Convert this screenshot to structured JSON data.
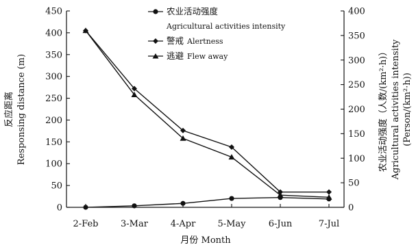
{
  "chart_data": {
    "type": "line",
    "categories": [
      "2-Feb",
      "3-Mar",
      "4-Apr",
      "5-May",
      "6-Jun",
      "7-Jul"
    ],
    "xlabel": "月份 Month",
    "ylabel_left_cn": "反应距离",
    "ylabel_left_en": "Responsing distance (m)",
    "ylabel_right_cn": "农业活动强度（人数/(km²·h)）",
    "ylabel_right_en": "Agricultural activities intensity",
    "ylabel_right_unit": "(Person/(km²·h))",
    "ylim_left": [
      0,
      450
    ],
    "yticks_left": [
      0,
      50,
      100,
      150,
      200,
      250,
      300,
      350,
      400,
      450
    ],
    "ylim_right": [
      0,
      400
    ],
    "yticks_right": [
      0,
      50,
      100,
      150,
      200,
      250,
      300,
      350,
      400
    ],
    "grid": false,
    "legend_position": "top-center",
    "series": [
      {
        "key": "intensity",
        "name_cn": "农业活动强度",
        "name_en": "Agricultural activities intensity",
        "axis": "right",
        "marker": "circle",
        "values": [
          0,
          3,
          8,
          18,
          20,
          17
        ]
      },
      {
        "key": "alertness",
        "name_cn": "警戒",
        "name_en": "Alertness",
        "axis": "left",
        "marker": "diamond",
        "values": [
          405,
          272,
          176,
          138,
          35,
          35
        ]
      },
      {
        "key": "flew_away",
        "name_cn": "逃避",
        "name_en": "Flew away",
        "axis": "left",
        "marker": "triangle",
        "values": [
          405,
          258,
          158,
          115,
          28,
          23
        ]
      }
    ]
  }
}
